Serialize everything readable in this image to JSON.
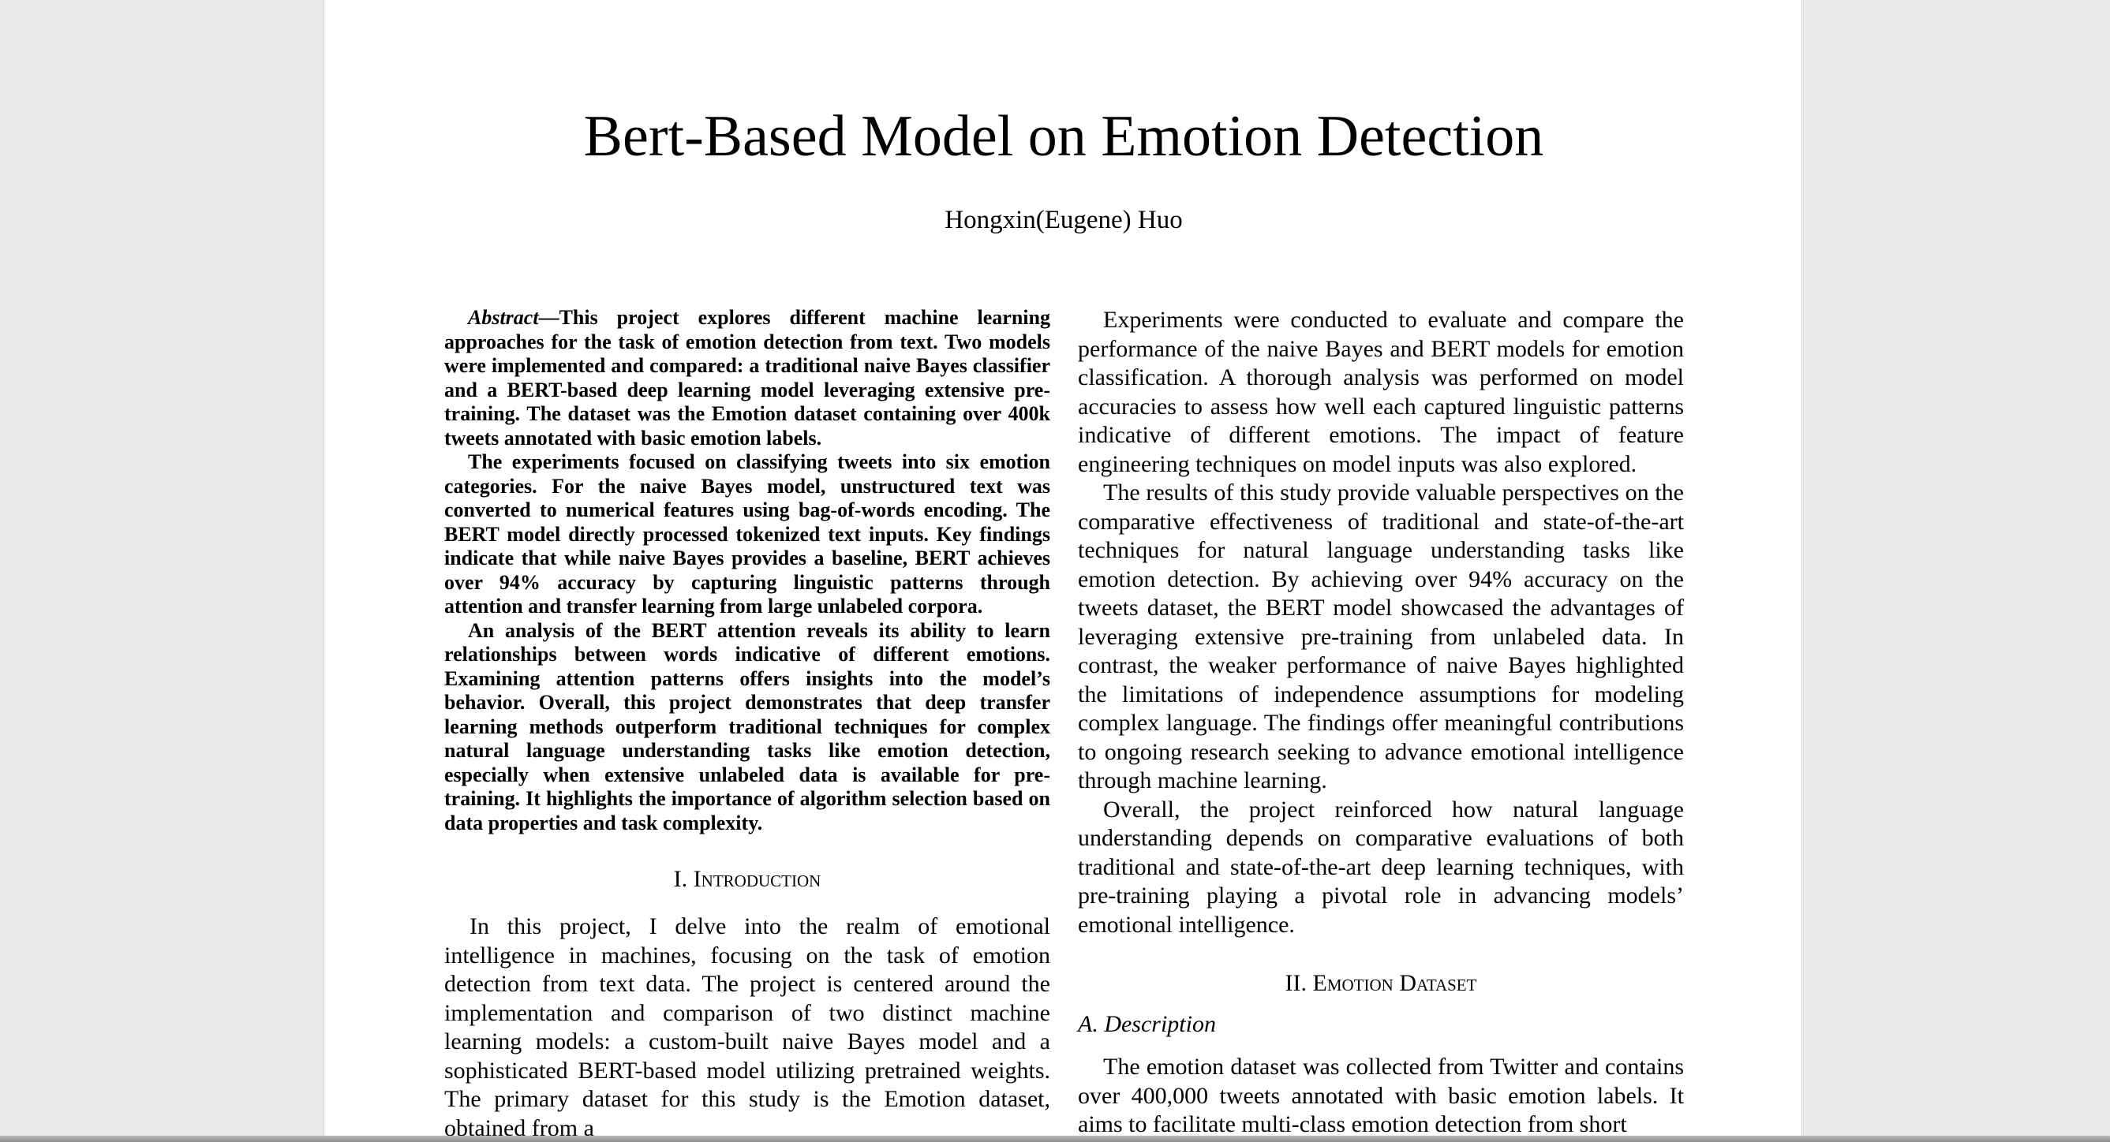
{
  "paper": {
    "title": "Bert-Based Model on Emotion Detection",
    "author": "Hongxin(Eugene) Huo"
  },
  "abstract": {
    "lead": "Abstract",
    "dash": "—",
    "p1": "This project explores different machine learning approaches for the task of emotion detection from text. Two models were implemented and compared: a traditional naive Bayes classifier and a BERT-based deep learning model leveraging extensive pre-training. The dataset was the Emotion dataset containing over 400k tweets annotated with basic emotion labels.",
    "p2": "The experiments focused on classifying tweets into six emotion categories. For the naive Bayes model, unstructured text was converted to numerical features using bag-of-words encoding. The BERT model directly processed tokenized text inputs. Key findings indicate that while naive Bayes provides a baseline, BERT achieves over 94% accuracy by capturing linguistic patterns through attention and transfer learning from large unlabeled corpora.",
    "p3": "An analysis of the BERT attention reveals its ability to learn relationships between words indicative of different emotions. Examining attention patterns offers insights into the model’s behavior. Overall, this project demonstrates that deep transfer learning methods outperform traditional techniques for complex natural language understanding tasks like emotion detection, especially when extensive unlabeled data is available for pre-training. It highlights the importance of algorithm selection based on data properties and task complexity."
  },
  "intro": {
    "number": "I.",
    "heading": "Introduction",
    "p1": "In this project, I delve into the realm of emotional intelligence in machines, focusing on the task of emotion detection from text data. The project is centered around the implementation and comparison of two distinct machine learning models: a custom-built naive Bayes model and a sophisticated BERT-based model utilizing pretrained weights. The primary dataset for this study is the Emotion dataset, obtained from a"
  },
  "right": {
    "p1": "Experiments were conducted to evaluate and compare the performance of the naive Bayes and BERT models for emotion classification. A thorough analysis was performed on model accuracies to assess how well each captured linguistic patterns indicative of different emotions. The impact of feature engineering techniques on model inputs was also explored.",
    "p2": "The results of this study provide valuable perspectives on the comparative effectiveness of traditional and state-of-the-art techniques for natural language understanding tasks like emotion detection. By achieving over 94% accuracy on the tweets dataset, the BERT model showcased the advantages of leveraging extensive pre-training from unlabeled data. In contrast, the weaker performance of naive Bayes highlighted the limitations of independence assumptions for modeling complex language. The findings offer meaningful contributions to ongoing research seeking to advance emotional intelligence through machine learning.",
    "p3": "Overall, the project reinforced how natural language understanding depends on comparative evaluations of both traditional and state-of-the-art deep learning techniques, with pre-training playing a pivotal role in advancing models’ emotional intelligence."
  },
  "dataset": {
    "number": "II.",
    "heading": "Emotion Dataset",
    "sub_label": "A. Description",
    "p1": "The emotion dataset was collected from Twitter and contains over 400,000 tweets annotated with basic emotion labels. It aims to facilitate multi-class emotion detection from short"
  }
}
